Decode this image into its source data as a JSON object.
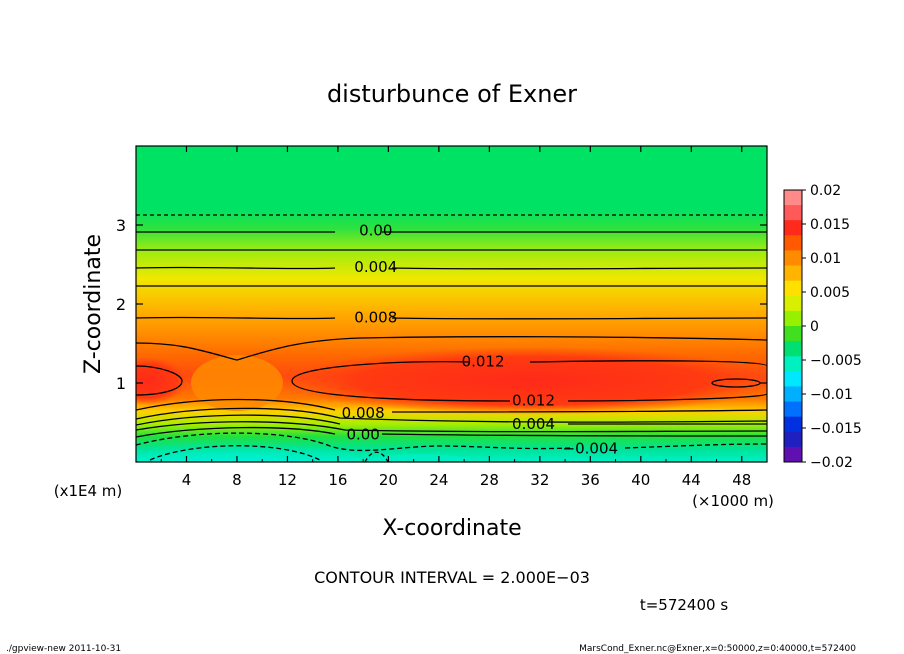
{
  "chart_data": {
    "type": "heatmap",
    "title": "disturbunce of Exner",
    "xlabel": "X-coordinate",
    "ylabel": "Z-coordinate",
    "x_unit_label": "(×1000 m)",
    "y_unit_label": "(x1E4 m)",
    "xlim": [
      0,
      50
    ],
    "ylim": [
      0,
      4
    ],
    "x_ticks": [
      4,
      8,
      12,
      16,
      20,
      24,
      28,
      32,
      36,
      40,
      44,
      48
    ],
    "y_ticks": [
      1,
      2,
      3
    ],
    "colorbar": {
      "ticks": [
        "0.02",
        "0.015",
        "0.01",
        "0.005",
        "0",
        "−0.005",
        "−0.01",
        "−0.015",
        "−0.02"
      ],
      "tick_values": [
        0.02,
        0.015,
        0.01,
        0.005,
        0,
        -0.005,
        -0.01,
        -0.015,
        -0.02
      ],
      "colors": [
        "#ff8a8a",
        "#ff5a5a",
        "#ff2a1a",
        "#ff5a00",
        "#ff8c00",
        "#ffb400",
        "#ffe000",
        "#d8f000",
        "#96f000",
        "#40e020",
        "#00e070",
        "#00f0c0",
        "#00e8ff",
        "#00b0ff",
        "#0070ff",
        "#0030e0",
        "#2020c0",
        "#6010b0"
      ]
    },
    "contour_labels": [
      {
        "text": "0.00",
        "x": 19.0,
        "y": 2.93
      },
      {
        "text": "0.004",
        "x": 19.0,
        "y": 2.47
      },
      {
        "text": "0.008",
        "x": 19.0,
        "y": 1.83
      },
      {
        "text": "0.012",
        "x": 27.5,
        "y": 1.27
      },
      {
        "text": "0.012",
        "x": 31.5,
        "y": 0.78
      },
      {
        "text": "0.008",
        "x": 18.0,
        "y": 0.62
      },
      {
        "text": "0.004",
        "x": 31.5,
        "y": 0.48
      },
      {
        "text": "0.00",
        "x": 18.0,
        "y": 0.35
      },
      {
        "text": "−0.004",
        "x": 36.0,
        "y": 0.17
      }
    ],
    "contour_interval_text": "CONTOUR INTERVAL = 2.000E−03",
    "time_text": "t=572400  s"
  },
  "footer": {
    "left": "./gpview-new   2011-10-31",
    "right": "MarsCond_Exner.nc@Exner,x=0:50000,z=0:40000,t=572400"
  },
  "colors": {
    "max_red": "#ff3a10",
    "orange": "#ff9a00",
    "yellow": "#ffe000",
    "green": "#00e060",
    "cyan": "#00f0e0"
  }
}
